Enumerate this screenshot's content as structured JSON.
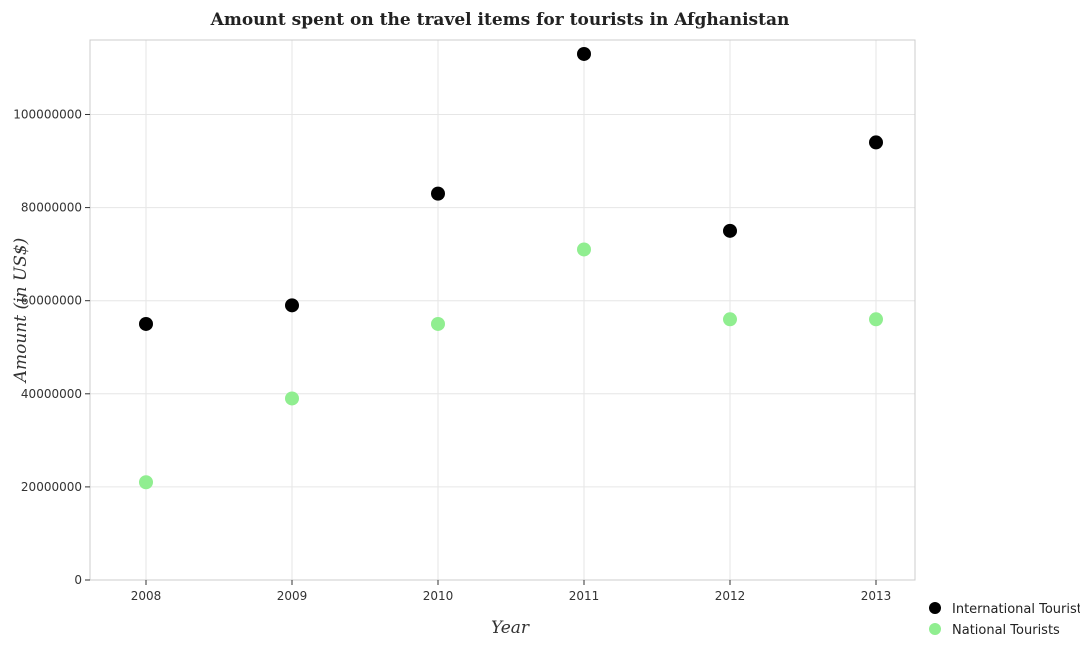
{
  "chart_data": {
    "type": "scatter",
    "title": "Amount spent on the travel items for tourists in Afghanistan",
    "xlabel": "Year",
    "ylabel": "Amount (in US$)",
    "categories": [
      "2008",
      "2009",
      "2010",
      "2011",
      "2012",
      "2013"
    ],
    "series": [
      {
        "name": "International Tourists",
        "color": "#000000",
        "values": [
          55000000,
          59000000,
          83000000,
          113000000,
          75000000,
          94000000
        ]
      },
      {
        "name": "National Tourists",
        "color": "#90ee90",
        "values": [
          21000000,
          39000000,
          55000000,
          71000000,
          56000000,
          56000000
        ]
      }
    ],
    "yticks": [
      0,
      20000000,
      40000000,
      60000000,
      80000000,
      100000000
    ],
    "ytick_labels": [
      "0",
      "20000000",
      "40000000",
      "60000000",
      "80000000",
      "100000000"
    ],
    "ylim": [
      0,
      116000000
    ],
    "grid": true,
    "legend_position": "bottom-right"
  }
}
